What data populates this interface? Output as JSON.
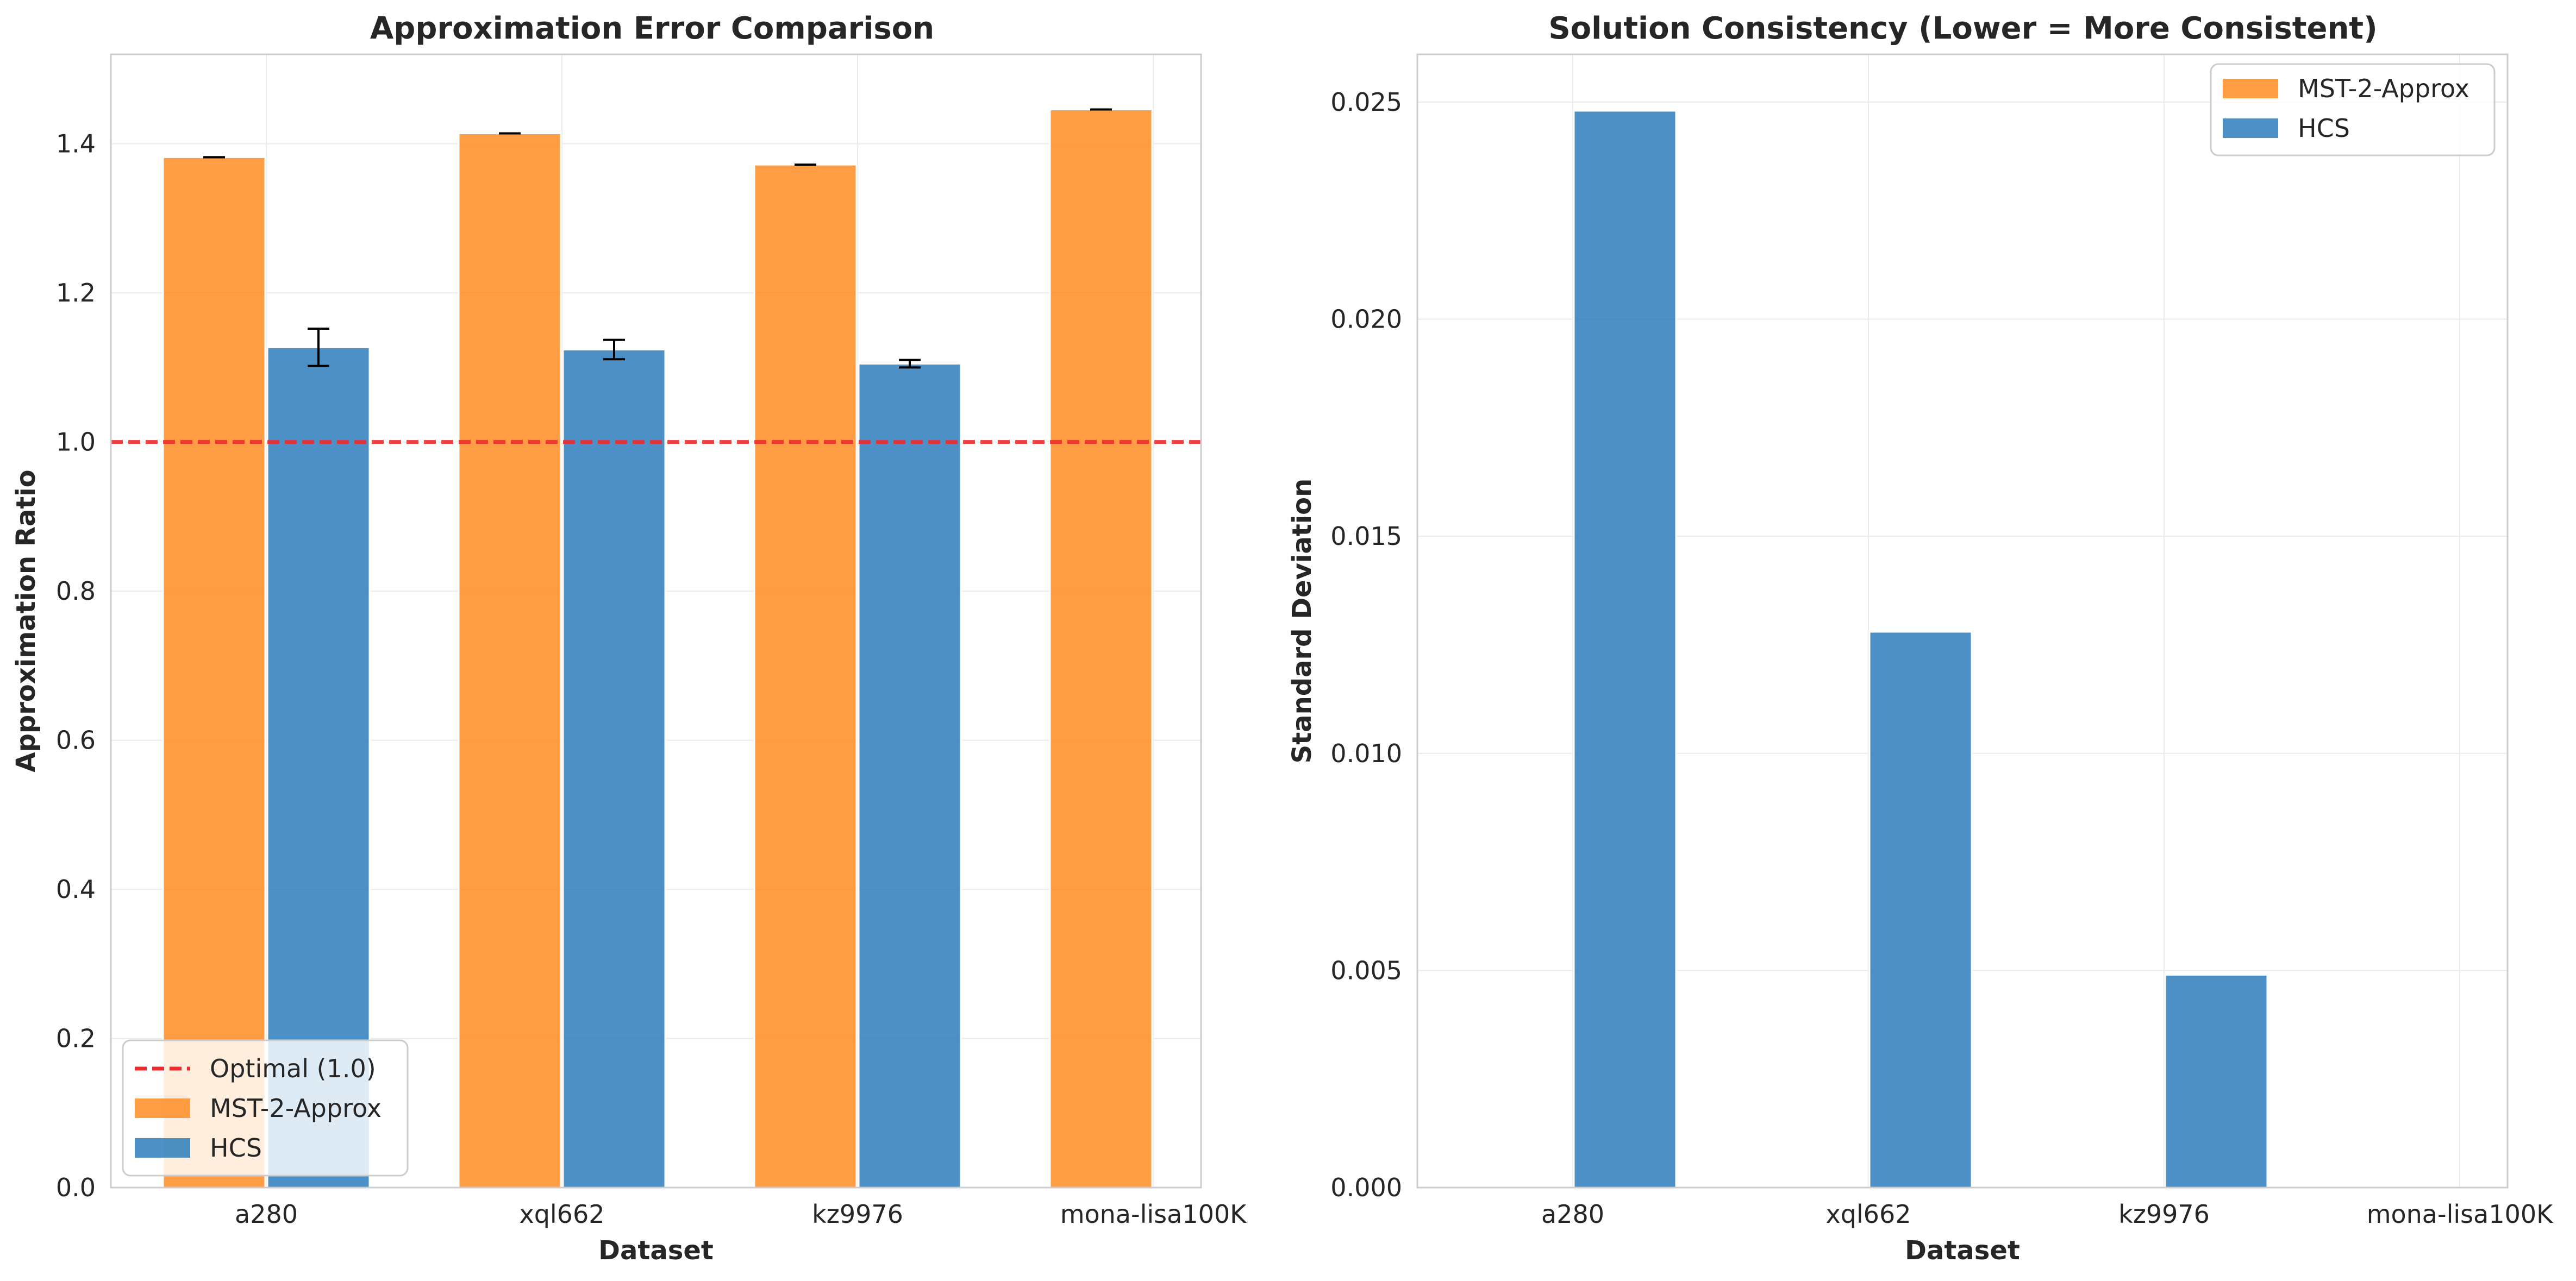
{
  "colors": {
    "mst": "#ff8c25",
    "hcs": "#2d7dbb",
    "optimal": "#ee2a2a",
    "grid": "#ebebeb",
    "spine": "#cccccc",
    "text": "#262626"
  },
  "chart_data": [
    {
      "type": "bar",
      "title": "Approximation Error Comparison",
      "xlabel": "Dataset",
      "ylabel": "Approximation Ratio",
      "categories": [
        "a280",
        "xql662",
        "kz9976",
        "mona-lisa100K"
      ],
      "ylim": [
        0,
        1.52
      ],
      "yticks": [
        "0.0",
        "0.2",
        "0.4",
        "0.6",
        "0.8",
        "1.0",
        "1.2",
        "1.4"
      ],
      "grid": true,
      "legend_position": "lower-left",
      "reference_line": {
        "label": "Optimal (1.0)",
        "value": 1.0,
        "style": "dashed"
      },
      "series": [
        {
          "name": "MST-2-Approx",
          "values": [
            1.382,
            1.414,
            1.372,
            1.446
          ],
          "errors": [
            0.0,
            0.0,
            0.0,
            0.0
          ]
        },
        {
          "name": "HCS",
          "values": [
            1.127,
            1.124,
            1.105,
            null
          ],
          "errors": [
            0.025,
            0.013,
            0.005,
            null
          ]
        }
      ]
    },
    {
      "type": "bar",
      "title": "Solution Consistency (Lower = More Consistent)",
      "xlabel": "Dataset",
      "ylabel": "Standard Deviation",
      "categories": [
        "a280",
        "xql662",
        "kz9976",
        "mona-lisa100K"
      ],
      "ylim": [
        0,
        0.0261
      ],
      "yticks": [
        "0.000",
        "0.005",
        "0.010",
        "0.015",
        "0.020",
        "0.025"
      ],
      "grid": true,
      "legend_position": "upper-right",
      "series": [
        {
          "name": "MST-2-Approx",
          "values": [
            0.0,
            0.0,
            0.0,
            0.0
          ]
        },
        {
          "name": "HCS",
          "values": [
            0.0248,
            0.0128,
            0.0049,
            null
          ]
        }
      ]
    }
  ]
}
